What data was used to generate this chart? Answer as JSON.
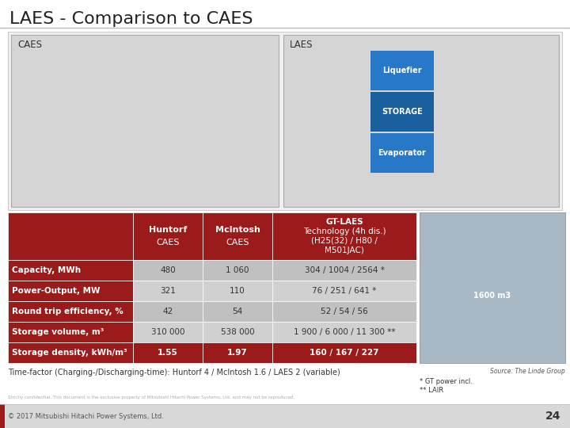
{
  "title": "LAES - Comparison to CAES",
  "title_color": "#222222",
  "title_fontsize": 16,
  "background_color": "#ffffff",
  "header_row": [
    "",
    "Huntorf\nCAES",
    "McIntosh\nCAES",
    "GT-LAES\nTechnology (4h dis.)\n(H25(32) / H80 /\nM501JAC)"
  ],
  "row_labels": [
    "Capacity, MWh",
    "Power-Output, MW",
    "Round trip efficiency, %",
    "Storage volume, m³",
    "Storage density, kWh/m³"
  ],
  "col1": [
    "480",
    "321",
    "42",
    "310 000",
    "1.55"
  ],
  "col2": [
    "1 060",
    "110",
    "54",
    "538 000",
    "1.97"
  ],
  "col3": [
    "304 / 1004 / 2564 *",
    "76 / 251 / 641 *",
    "52 / 54 / 56",
    "1 900 / 6 000 / 11 300 **",
    "160 / 167 / 227"
  ],
  "header_bg": "#9b1a1a",
  "header_text_color": "#ffffff",
  "row_label_bg": "#9b1a1a",
  "row_label_text_color": "#ffffff",
  "odd_row_bg": "#c0c0c0",
  "even_row_bg": "#d0d0d0",
  "last_row_bg": "#9b1a1a",
  "last_row_text_color": "#ffffff",
  "data_text_color": "#333333",
  "col3_text_color": "#444444",
  "footer_text": "Time-factor (Charging-/Discharging-time): Huntorf 4 / McIntosh 1.6 / LAES 2 (variable)",
  "footnote1": "* GT power incl.",
  "footnote2": "** LAIR",
  "source_text": "Source: The Linde Group",
  "copyright_text": "© 2017 Mitsubishi Hitachi Power Systems, Ltd.",
  "page_number": "24",
  "caes_label": "CAES",
  "laes_label": "LAES",
  "liquefier_label": "Liquefier",
  "storage_label": "STORAGE",
  "evaporator_label": "Evaporator",
  "diagram_bg": "#d5d5d5",
  "diagram_border": "#aaaaaa",
  "storage_blue_dark": "#1a5f9e",
  "storage_blue_light": "#2878c8"
}
